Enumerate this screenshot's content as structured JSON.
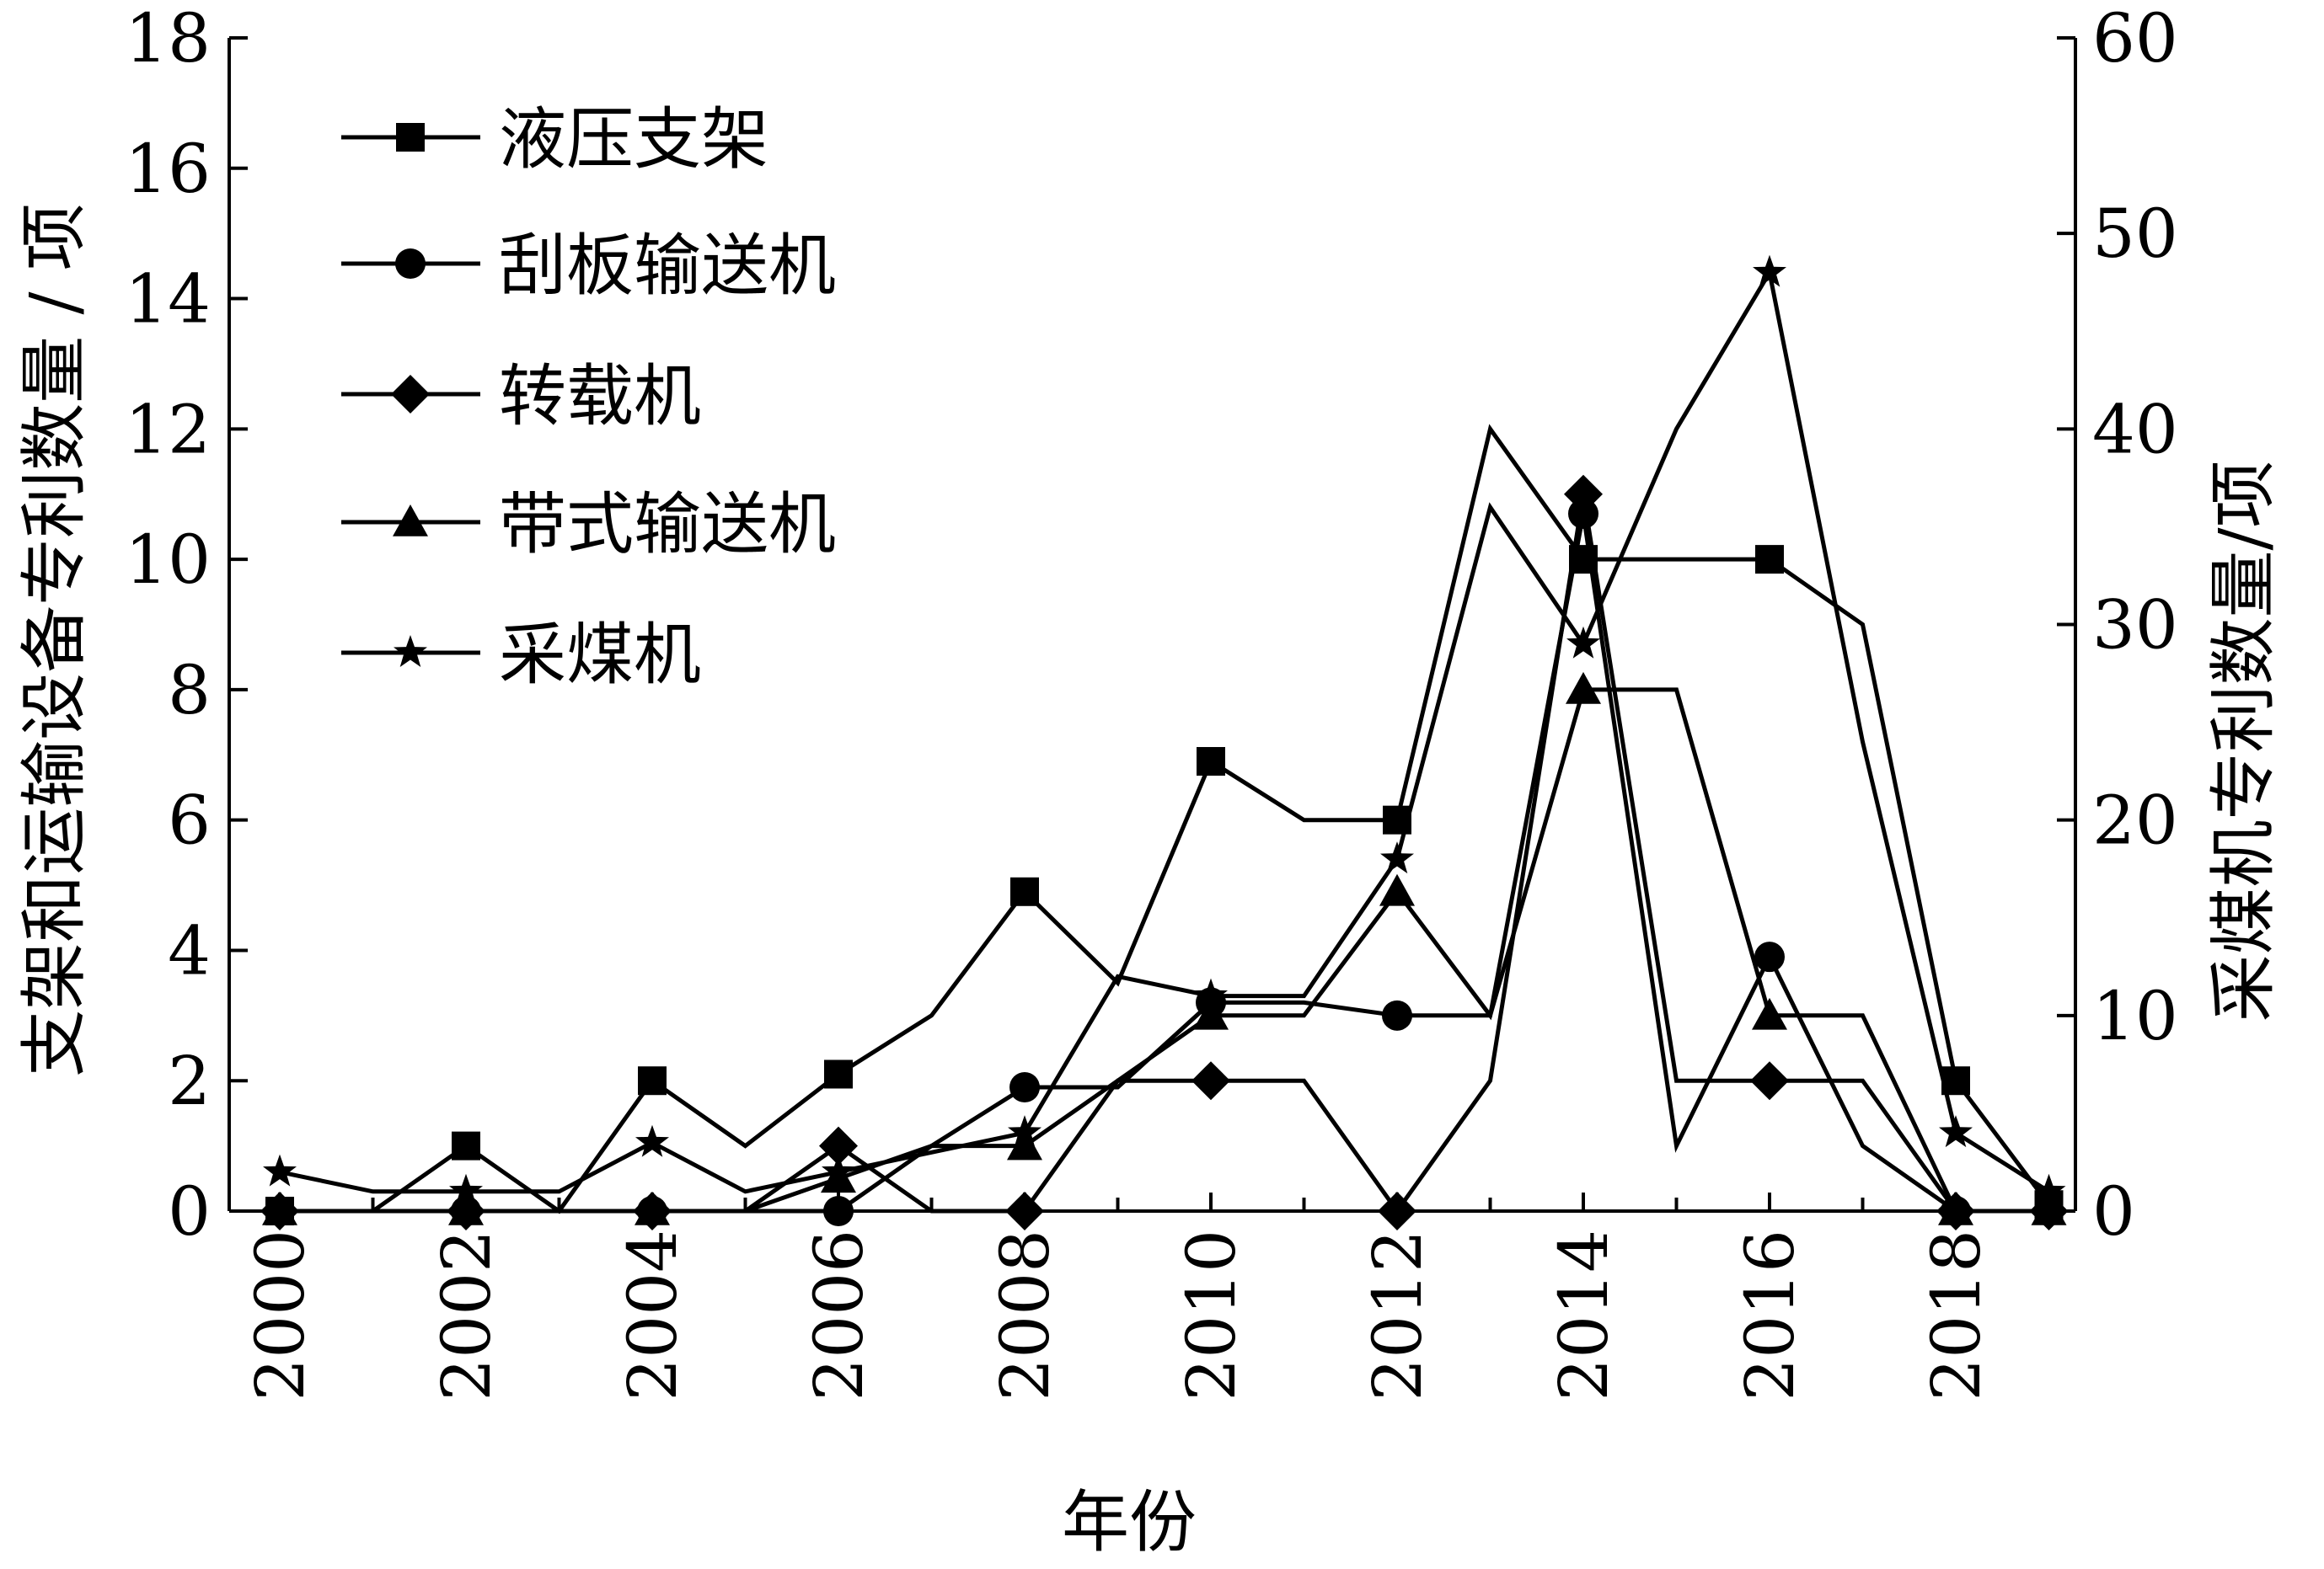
{
  "chart_data": {
    "type": "line",
    "xlabel": "年份",
    "ylabel_left": "支架和运输设备专利数量 / 项",
    "ylabel_right": "采煤机专利数量/项",
    "x_ticks": [
      "2000",
      "2002",
      "2004",
      "2006",
      "2008",
      "2010",
      "2012",
      "2014",
      "2016",
      "2018"
    ],
    "x_range": [
      2000,
      2019
    ],
    "y_left_ticks": [
      "0",
      "2",
      "4",
      "6",
      "8",
      "10",
      "12",
      "14",
      "16",
      "18"
    ],
    "y_left_range": [
      0,
      18
    ],
    "y_right_ticks": [
      "0",
      "10",
      "20",
      "30",
      "40",
      "50",
      "60"
    ],
    "y_right_range": [
      0,
      60
    ],
    "legend_position": "top-left",
    "grid": false,
    "series": [
      {
        "name": "液压支架",
        "axis": "left",
        "marker": "square",
        "x": [
          2000,
          2001,
          2002,
          2003,
          2004,
          2005,
          2006,
          2007,
          2008,
          2009,
          2010,
          2011,
          2012,
          2013,
          2014,
          2015,
          2016,
          2017,
          2018,
          2019
        ],
        "y": [
          0,
          0,
          1,
          0,
          2,
          1,
          2.1,
          3,
          4.9,
          3.5,
          6.9,
          6,
          6,
          12,
          10,
          10,
          10,
          9,
          2,
          0.1
        ]
      },
      {
        "name": "刮板输送机",
        "axis": "left",
        "marker": "circle",
        "x": [
          2000,
          2001,
          2002,
          2003,
          2004,
          2005,
          2006,
          2007,
          2008,
          2009,
          2010,
          2011,
          2012,
          2013,
          2014,
          2015,
          2016,
          2017,
          2018,
          2019
        ],
        "y": [
          0,
          0,
          0,
          0,
          0,
          0,
          0,
          1,
          1.9,
          1.9,
          3.2,
          3.2,
          3,
          3,
          10.7,
          1,
          3.9,
          1,
          0,
          0
        ]
      },
      {
        "name": "转载机",
        "axis": "left",
        "marker": "diamond",
        "x": [
          2000,
          2001,
          2002,
          2003,
          2004,
          2005,
          2006,
          2007,
          2008,
          2009,
          2010,
          2011,
          2012,
          2013,
          2014,
          2015,
          2016,
          2017,
          2018,
          2019
        ],
        "y": [
          0,
          0,
          0,
          0,
          0,
          0,
          1,
          0,
          0,
          2,
          2,
          2,
          0,
          2,
          11,
          2,
          2,
          2,
          0,
          0
        ]
      },
      {
        "name": "带式输送机",
        "axis": "left",
        "marker": "triangle",
        "x": [
          2000,
          2001,
          2002,
          2003,
          2004,
          2005,
          2006,
          2007,
          2008,
          2009,
          2010,
          2011,
          2012,
          2013,
          2014,
          2015,
          2016,
          2017,
          2018,
          2019
        ],
        "y": [
          0,
          0,
          0,
          0,
          0,
          0,
          0.5,
          1,
          1,
          2,
          3,
          3,
          4.9,
          3,
          8,
          8,
          3,
          3,
          0,
          0
        ]
      },
      {
        "name": "采煤机",
        "axis": "right",
        "marker": "star",
        "x": [
          2000,
          2001,
          2002,
          2003,
          2004,
          2005,
          2006,
          2007,
          2008,
          2009,
          2010,
          2011,
          2012,
          2013,
          2014,
          2015,
          2016,
          2017,
          2018,
          2019
        ],
        "y": [
          2,
          1,
          1,
          1,
          3.5,
          1,
          2,
          3,
          4,
          12,
          11,
          11,
          18,
          36,
          29,
          40,
          48,
          24,
          4,
          1
        ]
      }
    ]
  }
}
